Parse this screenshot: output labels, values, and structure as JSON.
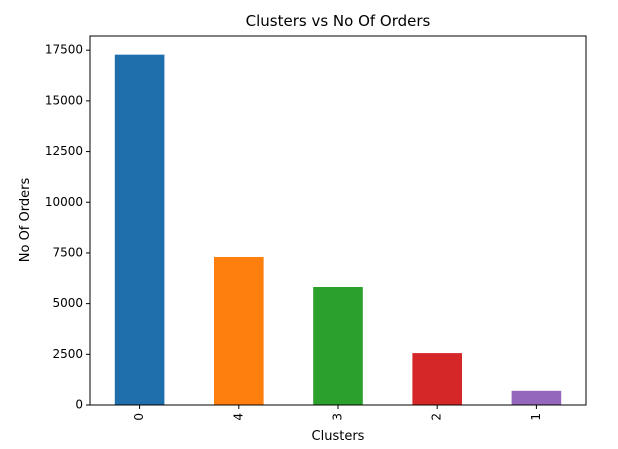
{
  "chart_data": {
    "type": "bar",
    "title": "Clusters vs No Of Orders",
    "xlabel": "Clusters",
    "ylabel": "No Of Orders",
    "categories": [
      "0",
      "4",
      "3",
      "2",
      "1"
    ],
    "values": [
      17280,
      7300,
      5820,
      2560,
      700
    ],
    "colors": [
      "#1f6fad",
      "#ff7f0e",
      "#2ca02c",
      "#d62728",
      "#9467bd"
    ],
    "ylim": [
      0,
      18200
    ],
    "yticks": [
      0,
      2500,
      5000,
      7500,
      10000,
      12500,
      15000,
      17500
    ],
    "ytick_labels": [
      "0",
      "2500",
      "5000",
      "7500",
      "10000",
      "12500",
      "15000",
      "17500"
    ],
    "grid": false,
    "legend": false
  }
}
